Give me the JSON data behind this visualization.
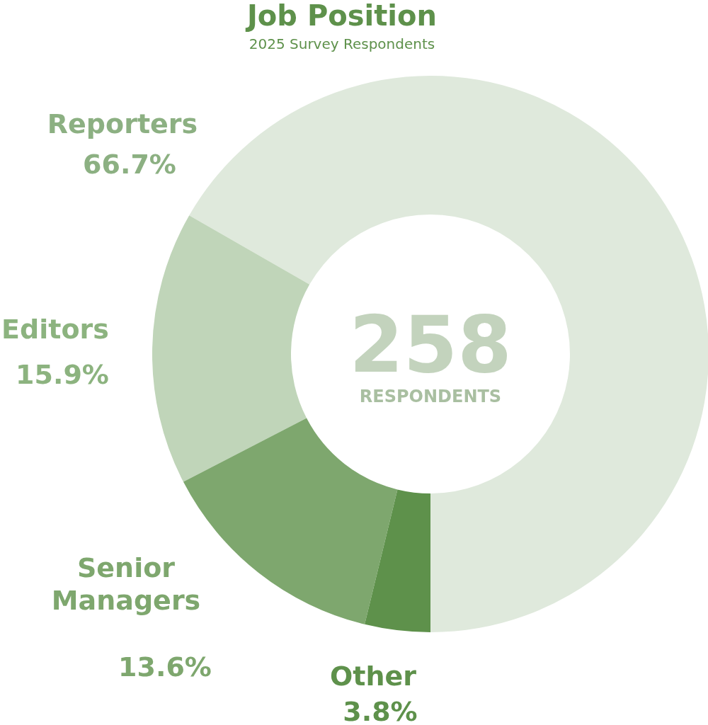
{
  "chart_data": {
    "type": "donut",
    "title": "Job Position",
    "subtitle": "2025 Survey Respondents",
    "categories": [
      "Reporters",
      "Editors",
      "Senior Managers",
      "Other"
    ],
    "values": [
      66.7,
      15.9,
      13.6,
      3.8
    ],
    "colors": [
      "#dfe9dc",
      "#c0d5b9",
      "#7ea76e",
      "#5e914b"
    ],
    "value_labels": [
      "66.7%",
      "15.9%",
      "13.6%",
      "3.8%"
    ],
    "annotations": [
      "258",
      "RESPONDENTS"
    ]
  }
}
